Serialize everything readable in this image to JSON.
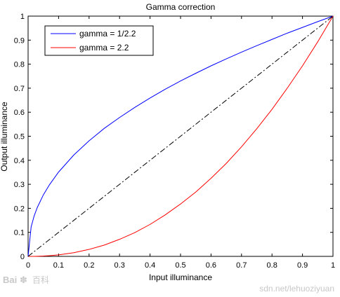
{
  "chart_data": {
    "type": "line",
    "title": "Gamma correction",
    "xlabel": "Input illuminance",
    "ylabel": "Output illuminance",
    "xlim": [
      0,
      1
    ],
    "ylim": [
      0,
      1
    ],
    "xticks": [
      0,
      0.1,
      0.2,
      0.3,
      0.4,
      0.5,
      0.6,
      0.7,
      0.8,
      0.9,
      1
    ],
    "yticks": [
      0,
      0.1,
      0.2,
      0.3,
      0.4,
      0.5,
      0.6,
      0.7,
      0.8,
      0.9,
      1
    ],
    "xtick_labels": [
      "0",
      "0.1",
      "0.2",
      "0.3",
      "0.4",
      "0.5",
      "0.6",
      "0.7",
      "0.8",
      "0.9",
      "1"
    ],
    "ytick_labels": [
      "0",
      "0.1",
      "0.2",
      "0.3",
      "0.4",
      "0.5",
      "0.6",
      "0.7",
      "0.8",
      "0.9",
      "1"
    ],
    "grid": false,
    "legend_position": "top-left",
    "x": [
      0,
      0.01,
      0.02,
      0.03,
      0.05,
      0.07,
      0.1,
      0.15,
      0.2,
      0.25,
      0.3,
      0.35,
      0.4,
      0.45,
      0.5,
      0.55,
      0.6,
      0.65,
      0.7,
      0.75,
      0.8,
      0.85,
      0.9,
      0.95,
      1
    ],
    "series": [
      {
        "name": "gamma = 1/2.2",
        "color": "#0000ff",
        "style": "solid",
        "values": [
          0,
          0.123,
          0.169,
          0.203,
          0.256,
          0.298,
          0.351,
          0.422,
          0.481,
          0.533,
          0.578,
          0.62,
          0.659,
          0.696,
          0.73,
          0.762,
          0.793,
          0.822,
          0.85,
          0.877,
          0.903,
          0.929,
          0.953,
          0.977,
          1
        ]
      },
      {
        "name": "gamma = 2.2",
        "color": "#ff0000",
        "style": "solid",
        "values": [
          0,
          0,
          0,
          0.0005,
          0.0014,
          0.0029,
          0.0063,
          0.0154,
          0.029,
          0.047,
          0.071,
          0.099,
          0.133,
          0.173,
          0.218,
          0.268,
          0.325,
          0.387,
          0.456,
          0.531,
          0.612,
          0.7,
          0.793,
          0.893,
          1
        ]
      },
      {
        "color": "#000000",
        "style": "dash-dot",
        "values": [
          0,
          0.01,
          0.02,
          0.03,
          0.05,
          0.07,
          0.1,
          0.15,
          0.2,
          0.25,
          0.3,
          0.35,
          0.4,
          0.45,
          0.5,
          0.55,
          0.6,
          0.65,
          0.7,
          0.75,
          0.8,
          0.85,
          0.9,
          0.95,
          1
        ]
      }
    ]
  },
  "watermark": {
    "logo_text": "Bai",
    "logo_suffix": "百科",
    "url_text": "sdn.net/lehuoziyuan"
  },
  "colors": {
    "axes": "#000000",
    "background": "#ffffff",
    "watermark": "#c8c8c8"
  }
}
